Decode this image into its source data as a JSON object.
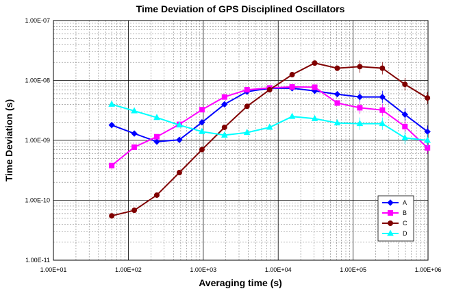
{
  "chart_data": {
    "type": "line",
    "title": "Time Deviation of GPS Disciplined Oscillators",
    "xlabel": "Averaging time (s)",
    "ylabel": "Time Deviation (s)",
    "x_scale": "log",
    "y_scale": "log",
    "xlim": [
      10,
      1000000
    ],
    "ylim": [
      1e-11,
      1e-07
    ],
    "x_ticks": [
      "1.00E+01",
      "1.00E+02",
      "1.00E+03",
      "1.00E+04",
      "1.00E+05",
      "1.00E+06"
    ],
    "y_ticks": [
      "1.00E-11",
      "1.00E-10",
      "1.00E-09",
      "1.00E-08",
      "1.00E-07"
    ],
    "grid": "major and minor",
    "legend_position": "bottom-right",
    "x": [
      60,
      120,
      240,
      480,
      960,
      1920,
      3840,
      7680,
      15360,
      30720,
      61440,
      122880,
      245760,
      491520,
      983040
    ],
    "series": [
      {
        "name": "A",
        "color": "#0000ff",
        "marker": "diamond",
        "values": [
          1.8e-09,
          1.3e-09,
          9.5e-10,
          1.02e-09,
          2e-09,
          4e-09,
          6.5e-09,
          7.4e-09,
          7.4e-09,
          6.7e-09,
          5.9e-09,
          5.3e-09,
          5.3e-09,
          2.7e-09,
          1.4e-09
        ]
      },
      {
        "name": "B",
        "color": "#ff00ff",
        "marker": "square",
        "values": [
          3.8e-10,
          7.7e-10,
          1.15e-09,
          1.85e-09,
          3.25e-09,
          5.3e-09,
          7e-09,
          7.5e-09,
          7.8e-09,
          7.7e-09,
          4.2e-09,
          3.5e-09,
          3.2e-09,
          1.7e-09,
          7.5e-10
        ]
      },
      {
        "name": "C",
        "color": "#800000",
        "marker": "circle",
        "values": [
          5.5e-11,
          6.8e-11,
          1.22e-10,
          2.9e-10,
          7e-10,
          1.65e-09,
          3.7e-09,
          7e-09,
          1.25e-08,
          1.95e-08,
          1.6e-08,
          1.7e-08,
          1.6e-08,
          8.6e-09,
          5.1e-09
        ]
      },
      {
        "name": "D",
        "color": "#00ffff",
        "marker": "triangle",
        "values": [
          4e-09,
          3.1e-09,
          2.4e-09,
          1.8e-09,
          1.4e-09,
          1.22e-09,
          1.35e-09,
          1.65e-09,
          2.5e-09,
          2.3e-09,
          1.95e-09,
          1.9e-09,
          1.9e-09,
          1.1e-09,
          1e-09
        ]
      }
    ]
  }
}
